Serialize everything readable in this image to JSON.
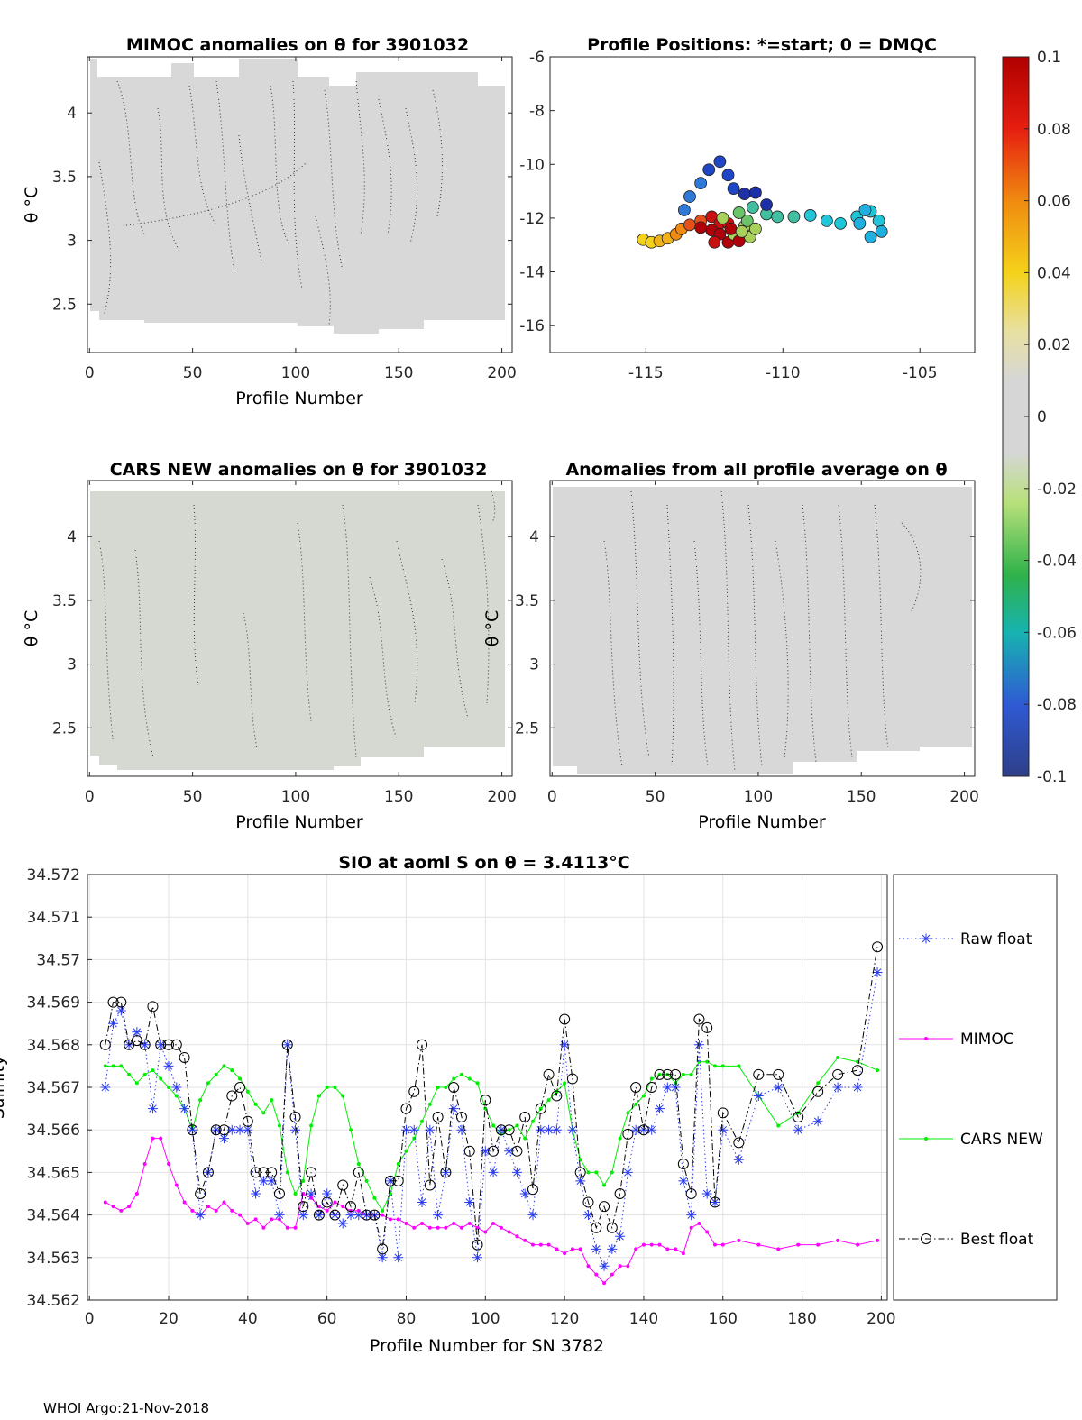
{
  "footer": "WHOI Argo:21-Nov-2018",
  "colors": {
    "raw": "#2a3cf0",
    "mimoc": "#ff00ff",
    "cars": "#00ee00",
    "best": "#000000"
  },
  "chart_data": [
    {
      "id": "mimoc",
      "type": "heatmap",
      "title": "MIMOC anomalies on θ  for 3901032",
      "xlabel": "Profile Number",
      "ylabel": "θ °C",
      "xlim": [
        -1,
        205
      ],
      "ylim": [
        2.12,
        4.44
      ],
      "xticks": [
        0,
        50,
        100,
        150,
        200
      ],
      "yticks": [
        2.5,
        3,
        3.5,
        4
      ],
      "fill_color": "#d8d8d8"
    },
    {
      "id": "positions",
      "type": "scatter",
      "title": "Profile Positions: *=start; 0 = DMQC",
      "xlim": [
        -118.5,
        -103
      ],
      "ylim": [
        -17,
        -6
      ],
      "xticks": [
        -115,
        -110,
        -105
      ],
      "yticks": [
        -16,
        -14,
        -12,
        -10,
        -8,
        -6
      ],
      "track": [
        [
          -115.1,
          -12.8
        ],
        [
          -114.8,
          -12.9
        ],
        [
          -114.5,
          -12.85
        ],
        [
          -114.2,
          -12.75
        ],
        [
          -113.9,
          -12.6
        ],
        [
          -113.7,
          -12.4
        ],
        [
          -113.4,
          -12.25
        ],
        [
          -113.0,
          -12.1
        ],
        [
          -112.6,
          -11.95
        ],
        [
          -112.3,
          -12.2
        ],
        [
          -112.6,
          -12.45
        ],
        [
          -113.0,
          -12.35
        ],
        [
          -112.3,
          -12.6
        ],
        [
          -112.0,
          -12.9
        ],
        [
          -111.8,
          -12.6
        ],
        [
          -111.4,
          -12.3
        ],
        [
          -111.2,
          -12.7
        ],
        [
          -111.0,
          -12.4
        ],
        [
          -111.3,
          -12.1
        ],
        [
          -111.6,
          -11.8
        ],
        [
          -111.1,
          -11.6
        ],
        [
          -110.6,
          -11.85
        ],
        [
          -110.2,
          -11.95
        ],
        [
          -109.6,
          -11.95
        ],
        [
          -109.0,
          -11.9
        ],
        [
          -108.4,
          -12.1
        ],
        [
          -107.9,
          -12.2
        ],
        [
          -107.3,
          -11.95
        ],
        [
          -106.8,
          -11.75
        ],
        [
          -106.5,
          -12.1
        ],
        [
          -106.4,
          -12.5
        ],
        [
          -106.8,
          -12.7
        ],
        [
          -107.2,
          -12.2
        ],
        [
          -107.0,
          -11.7
        ],
        [
          -113.6,
          -11.7
        ],
        [
          -113.4,
          -11.2
        ],
        [
          -113.0,
          -10.7
        ],
        [
          -112.7,
          -10.2
        ],
        [
          -112.3,
          -9.9
        ],
        [
          -112.0,
          -10.4
        ],
        [
          -111.8,
          -10.9
        ],
        [
          -111.4,
          -11.1
        ],
        [
          -111.0,
          -11.05
        ],
        [
          -110.6,
          -11.5
        ],
        [
          -112.5,
          -12.9
        ],
        [
          -112.0,
          -12.2
        ],
        [
          -111.6,
          -12.85
        ],
        [
          -111.9,
          -12.4
        ],
        [
          -112.2,
          -12.0
        ],
        [
          -111.5,
          -12.5
        ]
      ]
    },
    {
      "id": "colorbar",
      "type": "heatmap",
      "ticks": [
        "0.1",
        "0.08",
        "0.06",
        "0.04",
        "0.02",
        "0",
        "-0.02",
        "-0.04",
        "-0.06",
        "-0.08",
        "-0.1"
      ]
    },
    {
      "id": "cars",
      "type": "heatmap",
      "title": "CARS NEW anomalies on θ for 3901032",
      "xlabel": "Profile Number",
      "ylabel": "θ °C",
      "xlim": [
        -1,
        205
      ],
      "ylim": [
        2.12,
        4.44
      ],
      "xticks": [
        0,
        50,
        100,
        150,
        200
      ],
      "yticks": [
        2.5,
        3,
        3.5,
        4
      ]
    },
    {
      "id": "allprof",
      "type": "heatmap",
      "title": "Anomalies from all profile average on θ",
      "xlabel": "Profile Number",
      "ylabel": "θ °C",
      "xlim": [
        -1,
        205
      ],
      "ylim": [
        2.12,
        4.44
      ],
      "xticks": [
        0,
        50,
        100,
        150,
        200
      ],
      "yticks": [
        2.5,
        3,
        3.5,
        4
      ]
    },
    {
      "id": "sio",
      "type": "line",
      "title": "SIO at aoml S on θ = 3.4113",
      "title_unit": "°C",
      "xlabel": "Profile Number for SN 3782",
      "ylabel": "Salinity",
      "xlim": [
        -0.5,
        201.5
      ],
      "ylim": [
        34.562,
        34.572
      ],
      "xticks": [
        0,
        20,
        40,
        60,
        80,
        100,
        120,
        140,
        160,
        180,
        200
      ],
      "yticks": [
        "34.562",
        "34.563",
        "34.564",
        "34.565",
        "34.566",
        "34.567",
        "34.568",
        "34.569",
        "34.57",
        "34.571",
        "34.572"
      ],
      "x": [
        4,
        6,
        8,
        10,
        12,
        14,
        16,
        18,
        20,
        22,
        24,
        26,
        28,
        30,
        32,
        34,
        36,
        38,
        40,
        42,
        44,
        46,
        48,
        50,
        52,
        54,
        56,
        58,
        60,
        62,
        64,
        66,
        68,
        70,
        72,
        74,
        76,
        78,
        80,
        82,
        84,
        86,
        88,
        90,
        92,
        94,
        96,
        98,
        100,
        102,
        104,
        106,
        108,
        110,
        112,
        114,
        116,
        118,
        120,
        122,
        124,
        126,
        128,
        130,
        132,
        134,
        136,
        138,
        140,
        142,
        144,
        146,
        148,
        150,
        152,
        154,
        156,
        158,
        160,
        164,
        169,
        174,
        179,
        184,
        189,
        194,
        199
      ],
      "series": [
        {
          "name": "Raw float",
          "values": [
            34.567,
            34.5685,
            34.5688,
            34.568,
            34.5683,
            34.568,
            34.5665,
            34.568,
            34.5675,
            34.567,
            34.5665,
            34.566,
            34.564,
            34.565,
            34.566,
            34.5658,
            34.566,
            34.566,
            34.566,
            34.5645,
            34.5648,
            34.5648,
            34.564,
            34.568,
            34.566,
            34.564,
            34.5645,
            34.564,
            34.5645,
            34.564,
            34.5638,
            34.564,
            34.564,
            34.564,
            34.564,
            34.563,
            34.5648,
            34.563,
            34.566,
            34.566,
            34.5643,
            34.566,
            34.564,
            34.565,
            34.5665,
            34.566,
            34.5643,
            34.563,
            34.5655,
            34.565,
            34.566,
            34.5655,
            34.565,
            34.5645,
            34.564,
            34.566,
            34.566,
            34.566,
            34.568,
            34.566,
            34.5648,
            34.564,
            34.5632,
            34.5628,
            34.5632,
            34.5635,
            34.565,
            34.566,
            34.566,
            34.566,
            34.5665,
            34.567,
            34.567,
            34.5648,
            34.564,
            34.568,
            34.5645,
            34.5643,
            34.566,
            34.5653,
            34.5668,
            34.567,
            34.566,
            34.5662,
            34.567,
            34.567,
            34.5697
          ]
        },
        {
          "name": "MIMOC",
          "values": [
            34.5643,
            34.5642,
            34.5641,
            34.5642,
            34.5645,
            34.5652,
            34.5658,
            34.5658,
            34.5652,
            34.5647,
            34.5643,
            34.5641,
            34.564,
            34.5642,
            34.5641,
            34.5643,
            34.5641,
            34.564,
            34.5638,
            34.5639,
            34.5637,
            34.5639,
            34.5639,
            34.5637,
            34.5637,
            34.5645,
            34.5644,
            34.5642,
            34.5641,
            34.5643,
            34.5642,
            34.5641,
            34.5641,
            34.564,
            34.564,
            34.564,
            34.5639,
            34.5639,
            34.5638,
            34.5637,
            34.5638,
            34.5637,
            34.5637,
            34.5637,
            34.5638,
            34.5637,
            34.5638,
            34.5637,
            34.5636,
            34.5638,
            34.5637,
            34.5636,
            34.5635,
            34.5634,
            34.5633,
            34.5633,
            34.5633,
            34.5632,
            34.5631,
            34.5632,
            34.5632,
            34.5628,
            34.5626,
            34.5624,
            34.5626,
            34.5628,
            34.5628,
            34.5632,
            34.5633,
            34.5633,
            34.5633,
            34.5632,
            34.5632,
            34.5631,
            34.5637,
            34.5638,
            34.5636,
            34.5633,
            34.5633,
            34.5634,
            34.5633,
            34.5632,
            34.5633,
            34.5633,
            34.5634,
            34.5633,
            34.5634
          ]
        },
        {
          "name": "CARS NEW",
          "values": [
            34.5675,
            34.5675,
            34.5675,
            34.5673,
            34.5671,
            34.5673,
            34.5674,
            34.5672,
            34.567,
            34.5668,
            34.5665,
            34.566,
            34.5667,
            34.5671,
            34.5673,
            34.5675,
            34.5674,
            34.5672,
            34.5669,
            34.5666,
            34.5664,
            34.5667,
            34.5661,
            34.565,
            34.5645,
            34.5648,
            34.5661,
            34.5668,
            34.567,
            34.567,
            34.5668,
            34.566,
            34.5652,
            34.5648,
            34.5644,
            34.5641,
            34.5645,
            34.5652,
            34.5655,
            34.5658,
            34.5662,
            34.5666,
            34.567,
            34.567,
            34.5672,
            34.5673,
            34.5672,
            34.5671,
            34.5665,
            34.5661,
            34.5659,
            34.566,
            34.5661,
            34.5658,
            34.5662,
            34.5665,
            34.5667,
            34.5669,
            34.5671,
            34.566,
            34.5653,
            34.565,
            34.565,
            34.5647,
            34.565,
            34.5658,
            34.5664,
            34.5666,
            34.5668,
            34.5672,
            34.5673,
            34.5673,
            34.5671,
            34.5673,
            34.5673,
            34.5676,
            34.5676,
            34.5675,
            34.5675,
            34.5675,
            34.5668,
            34.5661,
            34.5664,
            34.5671,
            34.5677,
            34.5676,
            34.5674
          ]
        },
        {
          "name": "Best float",
          "values": [
            34.568,
            34.569,
            34.569,
            34.568,
            34.5681,
            34.568,
            34.5689,
            34.568,
            34.568,
            34.568,
            34.5677,
            34.566,
            34.5645,
            34.565,
            34.566,
            34.566,
            34.5668,
            34.567,
            34.5662,
            34.565,
            34.565,
            34.565,
            34.5645,
            34.568,
            34.5663,
            34.5642,
            34.565,
            34.564,
            34.5643,
            34.564,
            34.5647,
            34.5642,
            34.565,
            34.564,
            34.564,
            34.5632,
            34.5648,
            34.5648,
            34.5665,
            34.5669,
            34.568,
            34.5647,
            34.5663,
            34.565,
            34.567,
            34.5663,
            34.5655,
            34.5633,
            34.5667,
            34.5655,
            34.566,
            34.566,
            34.5655,
            34.5663,
            34.5646,
            34.5665,
            34.5673,
            34.5668,
            34.5686,
            34.5672,
            34.565,
            34.5643,
            34.5637,
            34.5642,
            34.5637,
            34.5645,
            34.5659,
            34.567,
            34.566,
            34.567,
            34.5673,
            34.5673,
            34.5673,
            34.5652,
            34.5645,
            34.5686,
            34.5684,
            34.5643,
            34.5664,
            34.5657,
            34.5673,
            34.5673,
            34.5663,
            34.5669,
            34.5673,
            34.5674,
            34.5703
          ]
        }
      ]
    }
  ]
}
